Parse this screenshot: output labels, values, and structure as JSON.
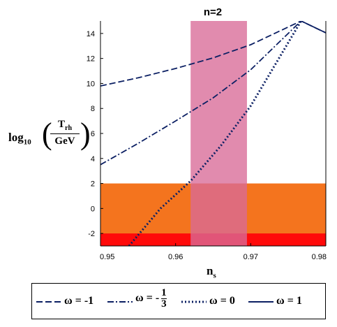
{
  "chart_data": {
    "type": "line",
    "title": "n=2",
    "xlabel": "n",
    "xlabel_sub": "s",
    "ylabel_prefix": "log",
    "ylabel_sub": "10",
    "ylabel_numerator": "T",
    "ylabel_numerator_sub": "rh",
    "ylabel_denominator": "GeV",
    "xlim": [
      0.95,
      0.98
    ],
    "ylim": [
      -3,
      15
    ],
    "xticks": [
      "0.95",
      "0.96",
      "0.97",
      "0.98"
    ],
    "yticks": [
      "-2",
      "0",
      "2",
      "4",
      "6",
      "8",
      "10",
      "12",
      "14"
    ],
    "bands": [
      {
        "axis": "y",
        "from": -3,
        "to": 2,
        "color": "#f4741e"
      },
      {
        "axis": "y",
        "from": -3,
        "to": -2,
        "color": "#ff0a0a"
      },
      {
        "axis": "x",
        "from": 0.962,
        "to": 0.9695,
        "color": "#d86a97"
      }
    ],
    "series": [
      {
        "name": "ω = -1",
        "style": "dash",
        "color": "#0b1f63",
        "points": [
          [
            0.95,
            9.8
          ],
          [
            0.955,
            10.45
          ],
          [
            0.96,
            11.2
          ],
          [
            0.965,
            12.05
          ],
          [
            0.97,
            13.1
          ],
          [
            0.9767,
            15.0
          ],
          [
            0.98,
            14.05
          ]
        ]
      },
      {
        "name": "ω = -1/3",
        "style": "dashdot",
        "color": "#0b1f63",
        "points": [
          [
            0.95,
            3.5
          ],
          [
            0.955,
            5.2
          ],
          [
            0.96,
            7.0
          ],
          [
            0.965,
            8.85
          ],
          [
            0.97,
            11.1
          ],
          [
            0.9767,
            15.0
          ]
        ]
      },
      {
        "name": "ω = 0",
        "style": "dot",
        "color": "#0b1f63",
        "points": [
          [
            0.9538,
            -3.0
          ],
          [
            0.958,
            0.0
          ],
          [
            0.962,
            2.2
          ],
          [
            0.966,
            5.0
          ],
          [
            0.97,
            8.2
          ],
          [
            0.9767,
            15.0
          ]
        ]
      },
      {
        "name": "ω = 1",
        "style": "solid",
        "color": "#0b1f63",
        "points": [
          [
            0.9767,
            15.0
          ],
          [
            0.98,
            14.05
          ]
        ]
      }
    ]
  },
  "legend": {
    "items": [
      {
        "label": "ω = -1"
      },
      {
        "label_pre": "ω = -",
        "frac_num": "1",
        "frac_den": "3"
      },
      {
        "label": "ω = 0"
      },
      {
        "label": "ω = 1"
      }
    ]
  }
}
